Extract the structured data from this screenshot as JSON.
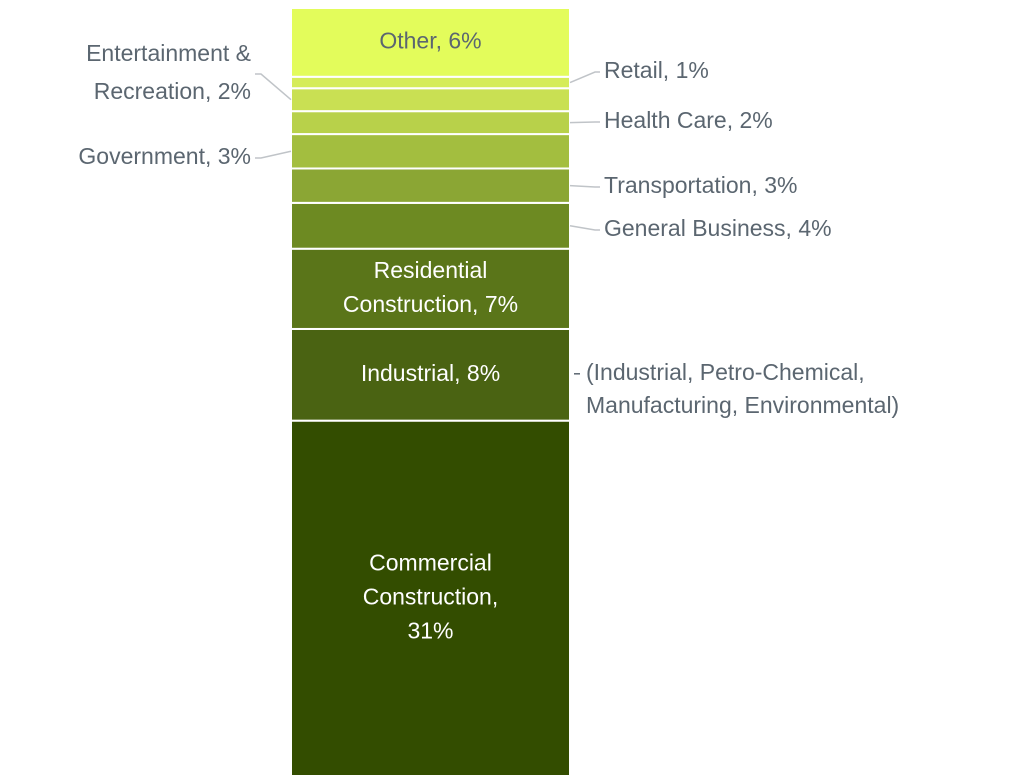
{
  "chart_data": {
    "type": "stacked_bar",
    "categories": [
      "Commercial Construction",
      "Industrial",
      "Residential Construction",
      "General Business",
      "Transportation",
      "Government",
      "Health Care",
      "Entertainment & Recreation",
      "Retail",
      "Other"
    ],
    "values": [
      31,
      8,
      7,
      4,
      3,
      3,
      2,
      2,
      1,
      6
    ],
    "value_labels": [
      "Commercial\nConstruction,\n31%",
      "Industrial, 8%",
      "Residential\nConstruction, 7%",
      "General Business, 4%",
      "Transportation, 3%",
      "Government, 3%",
      "Health Care, 2%",
      "Entertainment &\nRecreation, 2%",
      "Retail, 1%",
      "Other, 6%"
    ],
    "colors": [
      "#334d00",
      "#4a6312",
      "#5a7519",
      "#6d8a22",
      "#8ba634",
      "#a3be3f",
      "#b8d14a",
      "#c9e053",
      "#d5ec59",
      "#e3fc5b"
    ],
    "label_position": [
      "inside",
      "inside",
      "inside",
      "right",
      "right",
      "left",
      "right",
      "left",
      "right",
      "inside"
    ],
    "annotations": [
      "(Industrial, Petro-Chemical,\nManufacturing, Environmental)"
    ]
  }
}
